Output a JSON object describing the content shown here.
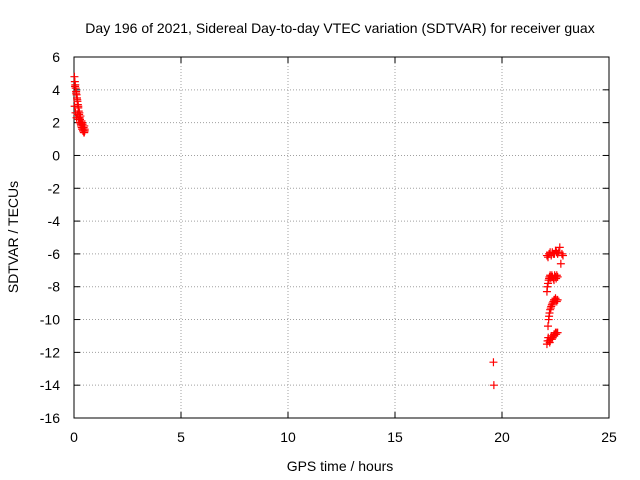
{
  "chart_data": {
    "type": "scatter",
    "title": "Day 196 of 2021, Sidereal Day-to-day VTEC variation (SDTVAR) for receiver guax",
    "xlabel": "GPS time / hours",
    "ylabel": "SDTVAR / TECUs",
    "xlim": [
      0,
      25
    ],
    "ylim": [
      -16,
      6
    ],
    "xticks": [
      0,
      5,
      10,
      15,
      20,
      25
    ],
    "yticks": [
      -16,
      -14,
      -12,
      -10,
      -8,
      -6,
      -4,
      -2,
      0,
      2,
      4,
      6
    ],
    "grid": true,
    "marker": "+",
    "marker_color": "#ff0000",
    "series": [
      {
        "name": "SDTVAR",
        "x": [
          0.02,
          0.04,
          0.06,
          0.08,
          0.1,
          0.12,
          0.14,
          0.16,
          0.18,
          0.2,
          0.22,
          0.24,
          0.26,
          0.28,
          0.3,
          0.32,
          0.34,
          0.36,
          0.38,
          0.4,
          0.42,
          0.44,
          0.46,
          0.48,
          0.5,
          0.05,
          0.1,
          0.15,
          0.2,
          0.25,
          0.3,
          0.35,
          0.4,
          0.45,
          0.5,
          0.03,
          0.07,
          0.12,
          0.17,
          0.22,
          0.27,
          0.33,
          0.38,
          0.43,
          0.48,
          19.6,
          19.62,
          22.1,
          22.15,
          22.2,
          22.25,
          22.3,
          22.35,
          22.4,
          22.45,
          22.5,
          22.55,
          22.6,
          22.65,
          22.7,
          22.75,
          22.8,
          22.85,
          22.1,
          22.12,
          22.15,
          22.18,
          22.2,
          22.22,
          22.25,
          22.28,
          22.3,
          22.33,
          22.36,
          22.4,
          22.43,
          22.46,
          22.5,
          22.53,
          22.56,
          22.6,
          22.15,
          22.18,
          22.2,
          22.22,
          22.25,
          22.28,
          22.3,
          22.33,
          22.36,
          22.4,
          22.43,
          22.46,
          22.5,
          22.53,
          22.56,
          22.6,
          22.1,
          22.13,
          22.16,
          22.2,
          22.23,
          22.26,
          22.3,
          22.33,
          22.36,
          22.4,
          22.43,
          22.46,
          22.5,
          22.53,
          22.56,
          22.6
        ],
        "y": [
          4.8,
          4.5,
          4.3,
          4.1,
          3.9,
          3.7,
          3.5,
          3.3,
          3.1,
          2.9,
          2.7,
          2.5,
          2.3,
          2.2,
          2.0,
          1.9,
          1.8,
          1.7,
          1.6,
          1.6,
          1.5,
          1.5,
          1.4,
          1.4,
          1.5,
          4.2,
          3.8,
          3.4,
          3.0,
          2.6,
          2.4,
          2.1,
          1.9,
          1.7,
          1.6,
          3.0,
          2.6,
          2.3,
          2.5,
          2.2,
          2.0,
          1.8,
          2.0,
          1.7,
          1.8,
          -12.6,
          -14.0,
          -6.1,
          -6.2,
          -6.0,
          -5.9,
          -6.1,
          -5.9,
          -6.0,
          -6.0,
          -5.8,
          -5.9,
          -6.0,
          -5.9,
          -5.6,
          -6.6,
          -6.0,
          -6.1,
          -8.3,
          -8.0,
          -7.8,
          -7.6,
          -7.5,
          -7.4,
          -7.3,
          -7.5,
          -7.4,
          -7.3,
          -7.4,
          -7.5,
          -7.6,
          -7.3,
          -7.4,
          -7.5,
          -7.3,
          -7.4,
          -10.4,
          -10.0,
          -9.8,
          -9.6,
          -9.4,
          -9.3,
          -9.2,
          -9.1,
          -9.0,
          -8.9,
          -8.8,
          -8.8,
          -8.7,
          -8.8,
          -8.9,
          -8.8,
          -11.5,
          -11.3,
          -11.1,
          -11.3,
          -11.4,
          -11.2,
          -11.0,
          -11.2,
          -11.1,
          -11.0,
          -10.9,
          -10.9,
          -10.8,
          -10.9,
          -10.8,
          -10.8
        ]
      }
    ]
  }
}
